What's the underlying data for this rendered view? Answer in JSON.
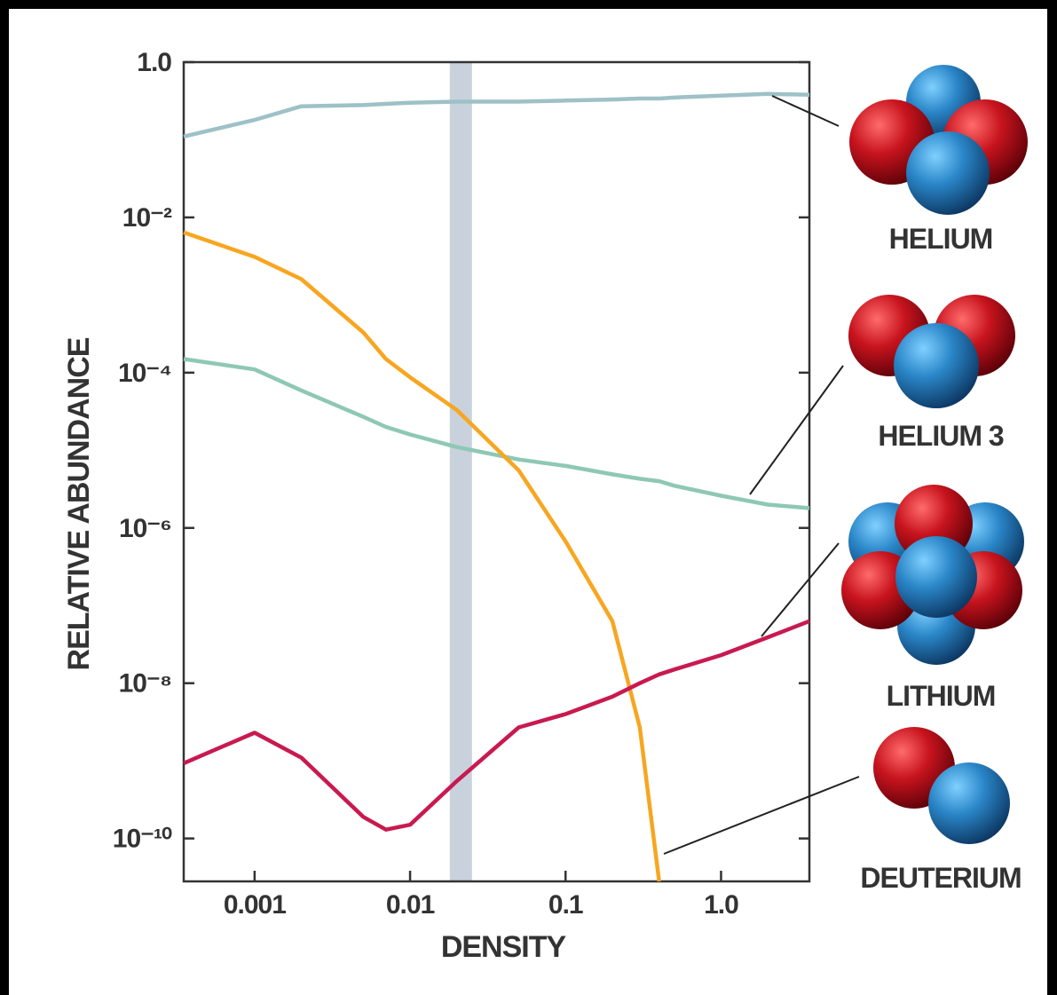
{
  "chart_data": {
    "type": "line",
    "x_label": "DENSITY",
    "y_label": "RELATIVE ABUNDANCE",
    "log_x": true,
    "log_y": true,
    "xlim": [
      0.00035,
      3.7
    ],
    "ylim": [
      2.8e-11,
      1
    ],
    "xticks": [
      0.001,
      0.01,
      0.1,
      {
        "value": 1,
        "label": "1.0"
      }
    ],
    "yticks": [
      {
        "value": 1,
        "label": "1.0"
      },
      {
        "value": 0.01,
        "label": "10⁻²"
      },
      {
        "value": 0.0001,
        "label": "10⁻⁴"
      },
      {
        "value": 1e-06,
        "label": "10⁻⁶"
      },
      {
        "value": 1e-08,
        "label": "10⁻⁸"
      },
      {
        "value": 1e-10,
        "label": "10⁻¹⁰"
      }
    ],
    "shaded_band": {
      "x": [
        0.018,
        0.025
      ],
      "color": "#c9d2dc"
    },
    "x": [
      0.00035,
      0.001,
      0.002,
      0.005,
      0.007,
      0.01,
      0.02,
      0.05,
      0.1,
      0.2,
      0.3,
      0.4,
      0.5,
      1,
      2,
      3.7
    ],
    "series": [
      {
        "name": "HELIUM",
        "color": "#9dc1c6",
        "values": [
          0.11,
          0.18,
          0.27,
          0.28,
          0.29,
          0.3,
          0.31,
          0.31,
          0.32,
          0.33,
          0.34,
          0.34,
          0.35,
          0.37,
          0.39,
          0.38
        ]
      },
      {
        "name": "HELIUM 3",
        "color": "#8ec8b4",
        "values": [
          0.00015,
          0.00011,
          5.9e-05,
          2.7e-05,
          2e-05,
          1.6e-05,
          1.1e-05,
          7.6e-06,
          6.3e-06,
          4.9e-06,
          4.3e-06,
          4e-06,
          3.5e-06,
          2.6e-06,
          2e-06,
          1.8e-06
        ]
      },
      {
        "name": "DEUTERIUM",
        "color": "#f7a621",
        "values": [
          0.0064,
          0.0031,
          0.0016,
          0.00033,
          0.00015,
          8.7e-05,
          3.3e-05,
          5.5e-06,
          6.7e-07,
          6.3e-08,
          2.7e-09,
          2.8e-11,
          null,
          null,
          null,
          null
        ]
      },
      {
        "name": "LITHIUM",
        "color": "#c81a50",
        "values": [
          9.3e-10,
          2.3e-09,
          1.1e-09,
          1.9e-10,
          1.3e-10,
          1.5e-10,
          5.5e-10,
          2.7e-09,
          4e-09,
          6.7e-09,
          1e-08,
          1.3e-08,
          1.5e-08,
          2.3e-08,
          3.9e-08,
          6.3e-08
        ]
      }
    ]
  }
}
